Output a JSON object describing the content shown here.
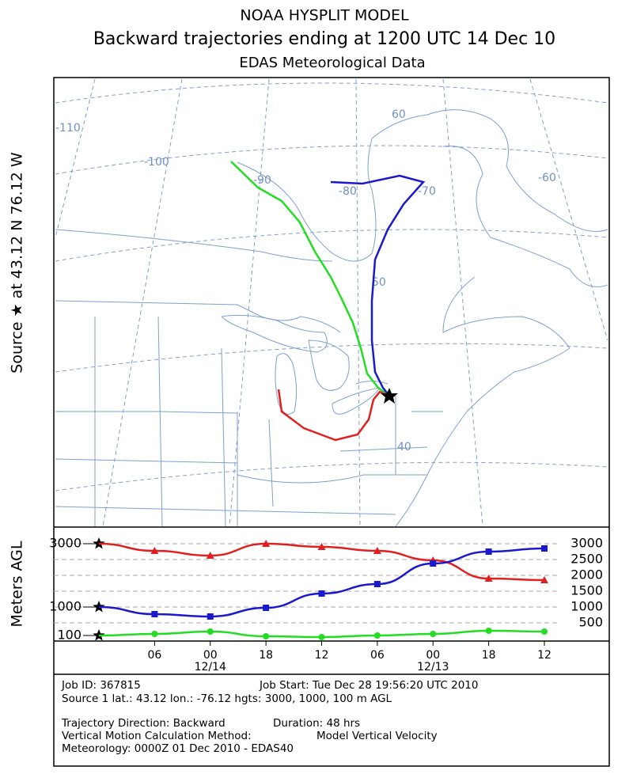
{
  "header": {
    "title": "NOAA HYSPLIT MODEL",
    "subtitle": "Backward trajectories ending at 1200 UTC 14 Dec 10",
    "data_source": "EDAS Meteorological Data"
  },
  "side_label": "Source ★ at 43.12 N 76.12 W",
  "map": {
    "grid_labels": [
      "-110",
      "-100",
      "-90",
      "-80",
      "-70",
      "-60",
      "60",
      "50",
      "40"
    ]
  },
  "chart_data": {
    "type": "line",
    "ylabel": "Meters AGL",
    "x": [
      0,
      6,
      12,
      18,
      24,
      30,
      36,
      42,
      48
    ],
    "xlim": [
      0,
      48
    ],
    "xticks": [
      {
        "value": 6,
        "label": "06"
      },
      {
        "value": 12,
        "label": "00"
      },
      {
        "value": 18,
        "label": "18"
      },
      {
        "value": 24,
        "label": "12"
      },
      {
        "value": 30,
        "label": "06"
      },
      {
        "value": 36,
        "label": "00"
      },
      {
        "value": 42,
        "label": "18"
      },
      {
        "value": 48,
        "label": "12"
      }
    ],
    "date_labels": [
      {
        "value": 12,
        "label": "12/14"
      },
      {
        "value": 36,
        "label": "12/13"
      }
    ],
    "ylim": [
      0,
      3450
    ],
    "yticks": [
      100,
      1000,
      3000
    ],
    "y2lim": [
      0,
      3450
    ],
    "y2ticks": [
      500,
      1000,
      1500,
      2000,
      2500,
      3000
    ],
    "series": [
      {
        "color": "#e02020",
        "marker": "triangle",
        "values": [
          3000,
          2775,
          2625,
          3000,
          2900,
          2775,
          2475,
          1900,
          1850
        ]
      },
      {
        "color": "#1a1acc",
        "marker": "square",
        "values": [
          1000,
          775,
          700,
          975,
          1425,
          1725,
          2375,
          2750,
          2850
        ]
      },
      {
        "color": "#22dd22",
        "marker": "circle",
        "values": [
          100,
          150,
          225,
          75,
          50,
          100,
          150,
          250,
          225
        ]
      }
    ]
  },
  "footer": {
    "job_id": "Job ID: 367815",
    "job_start": "Job Start: Tue Dec 28 19:56:20 UTC 2010",
    "source": "Source 1 lat.: 43.12  lon.: -76.12  hgts: 3000, 1000, 100 m AGL",
    "direction": "Trajectory Direction: Backward",
    "duration": "Duration: 48 hrs",
    "vertical_method": "Vertical Motion Calculation Method:",
    "vertical_value": "Model Vertical Velocity",
    "meteorology": "Meteorology: 0000Z 01 Dec 2010 - EDAS40"
  }
}
